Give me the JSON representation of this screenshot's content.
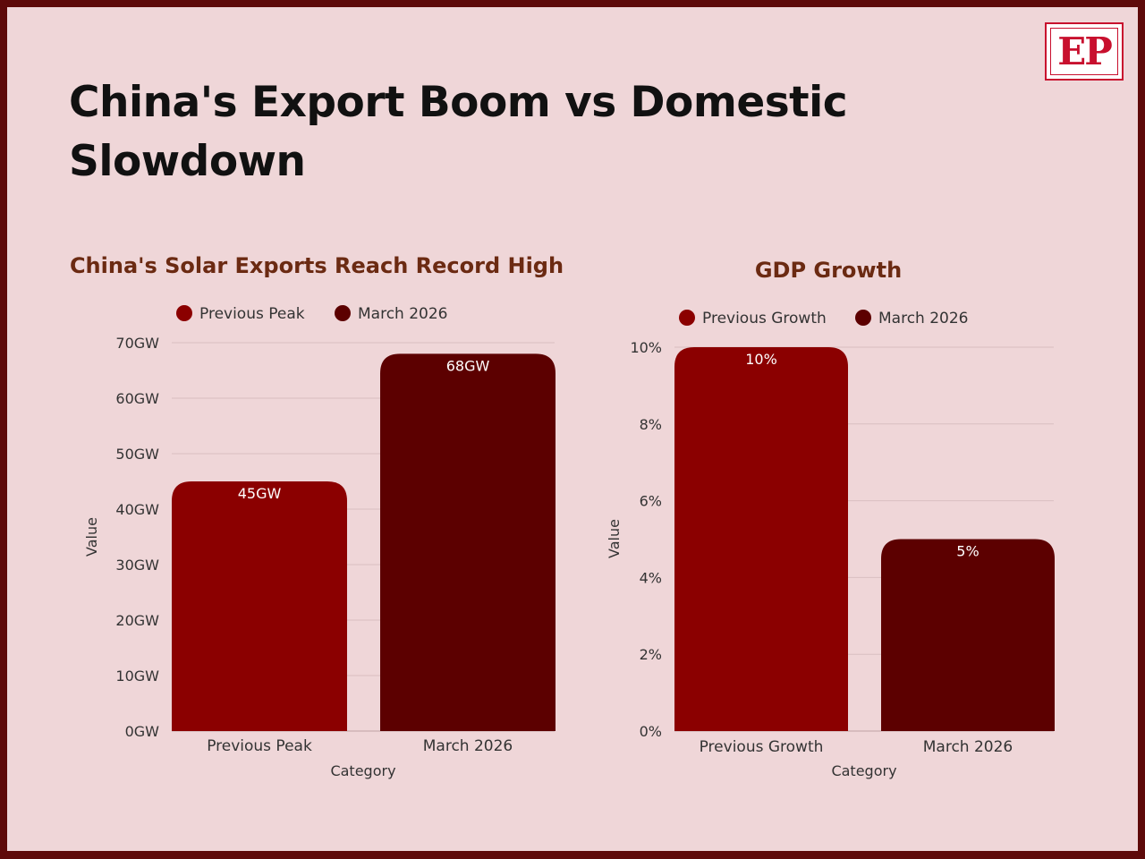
{
  "page": {
    "title": "China's Export Boom vs Domestic Slowdown",
    "logo_text": "EP",
    "colors": {
      "background": "#efd6d8",
      "border": "#5e0a0a",
      "title_brown": "#6b2a12",
      "logo_red": "#c8102e"
    }
  },
  "chart_data": [
    {
      "type": "bar",
      "title": "China's Solar Exports Reach Record High",
      "xlabel": "Category",
      "ylabel": "Value",
      "categories": [
        "Previous Peak",
        "March 2026"
      ],
      "values": [
        45,
        68
      ],
      "data_labels": [
        "45GW",
        "68GW"
      ],
      "series": [
        {
          "name": "Previous Peak",
          "color": "#8b0000"
        },
        {
          "name": "March 2026",
          "color": "#5c0000"
        }
      ],
      "unit_suffix": "GW",
      "ylim": [
        0,
        70
      ],
      "yticks": [
        0,
        10,
        20,
        30,
        40,
        50,
        60,
        70
      ],
      "ytick_labels": [
        "0GW",
        "10GW",
        "20GW",
        "30GW",
        "40GW",
        "50GW",
        "60GW",
        "70GW"
      ],
      "grid": true,
      "legend_position": "top"
    },
    {
      "type": "bar",
      "title": "GDP Growth",
      "xlabel": "Category",
      "ylabel": "Value",
      "categories": [
        "Previous Growth",
        "March 2026"
      ],
      "values": [
        10,
        5
      ],
      "data_labels": [
        "10%",
        "5%"
      ],
      "series": [
        {
          "name": "Previous Growth",
          "color": "#8b0000"
        },
        {
          "name": "March 2026",
          "color": "#5c0000"
        }
      ],
      "unit_suffix": "%",
      "ylim": [
        0,
        10
      ],
      "yticks": [
        0,
        2,
        4,
        6,
        8,
        10
      ],
      "ytick_labels": [
        "0%",
        "2%",
        "4%",
        "6%",
        "8%",
        "10%"
      ],
      "grid": true,
      "legend_position": "top"
    }
  ]
}
